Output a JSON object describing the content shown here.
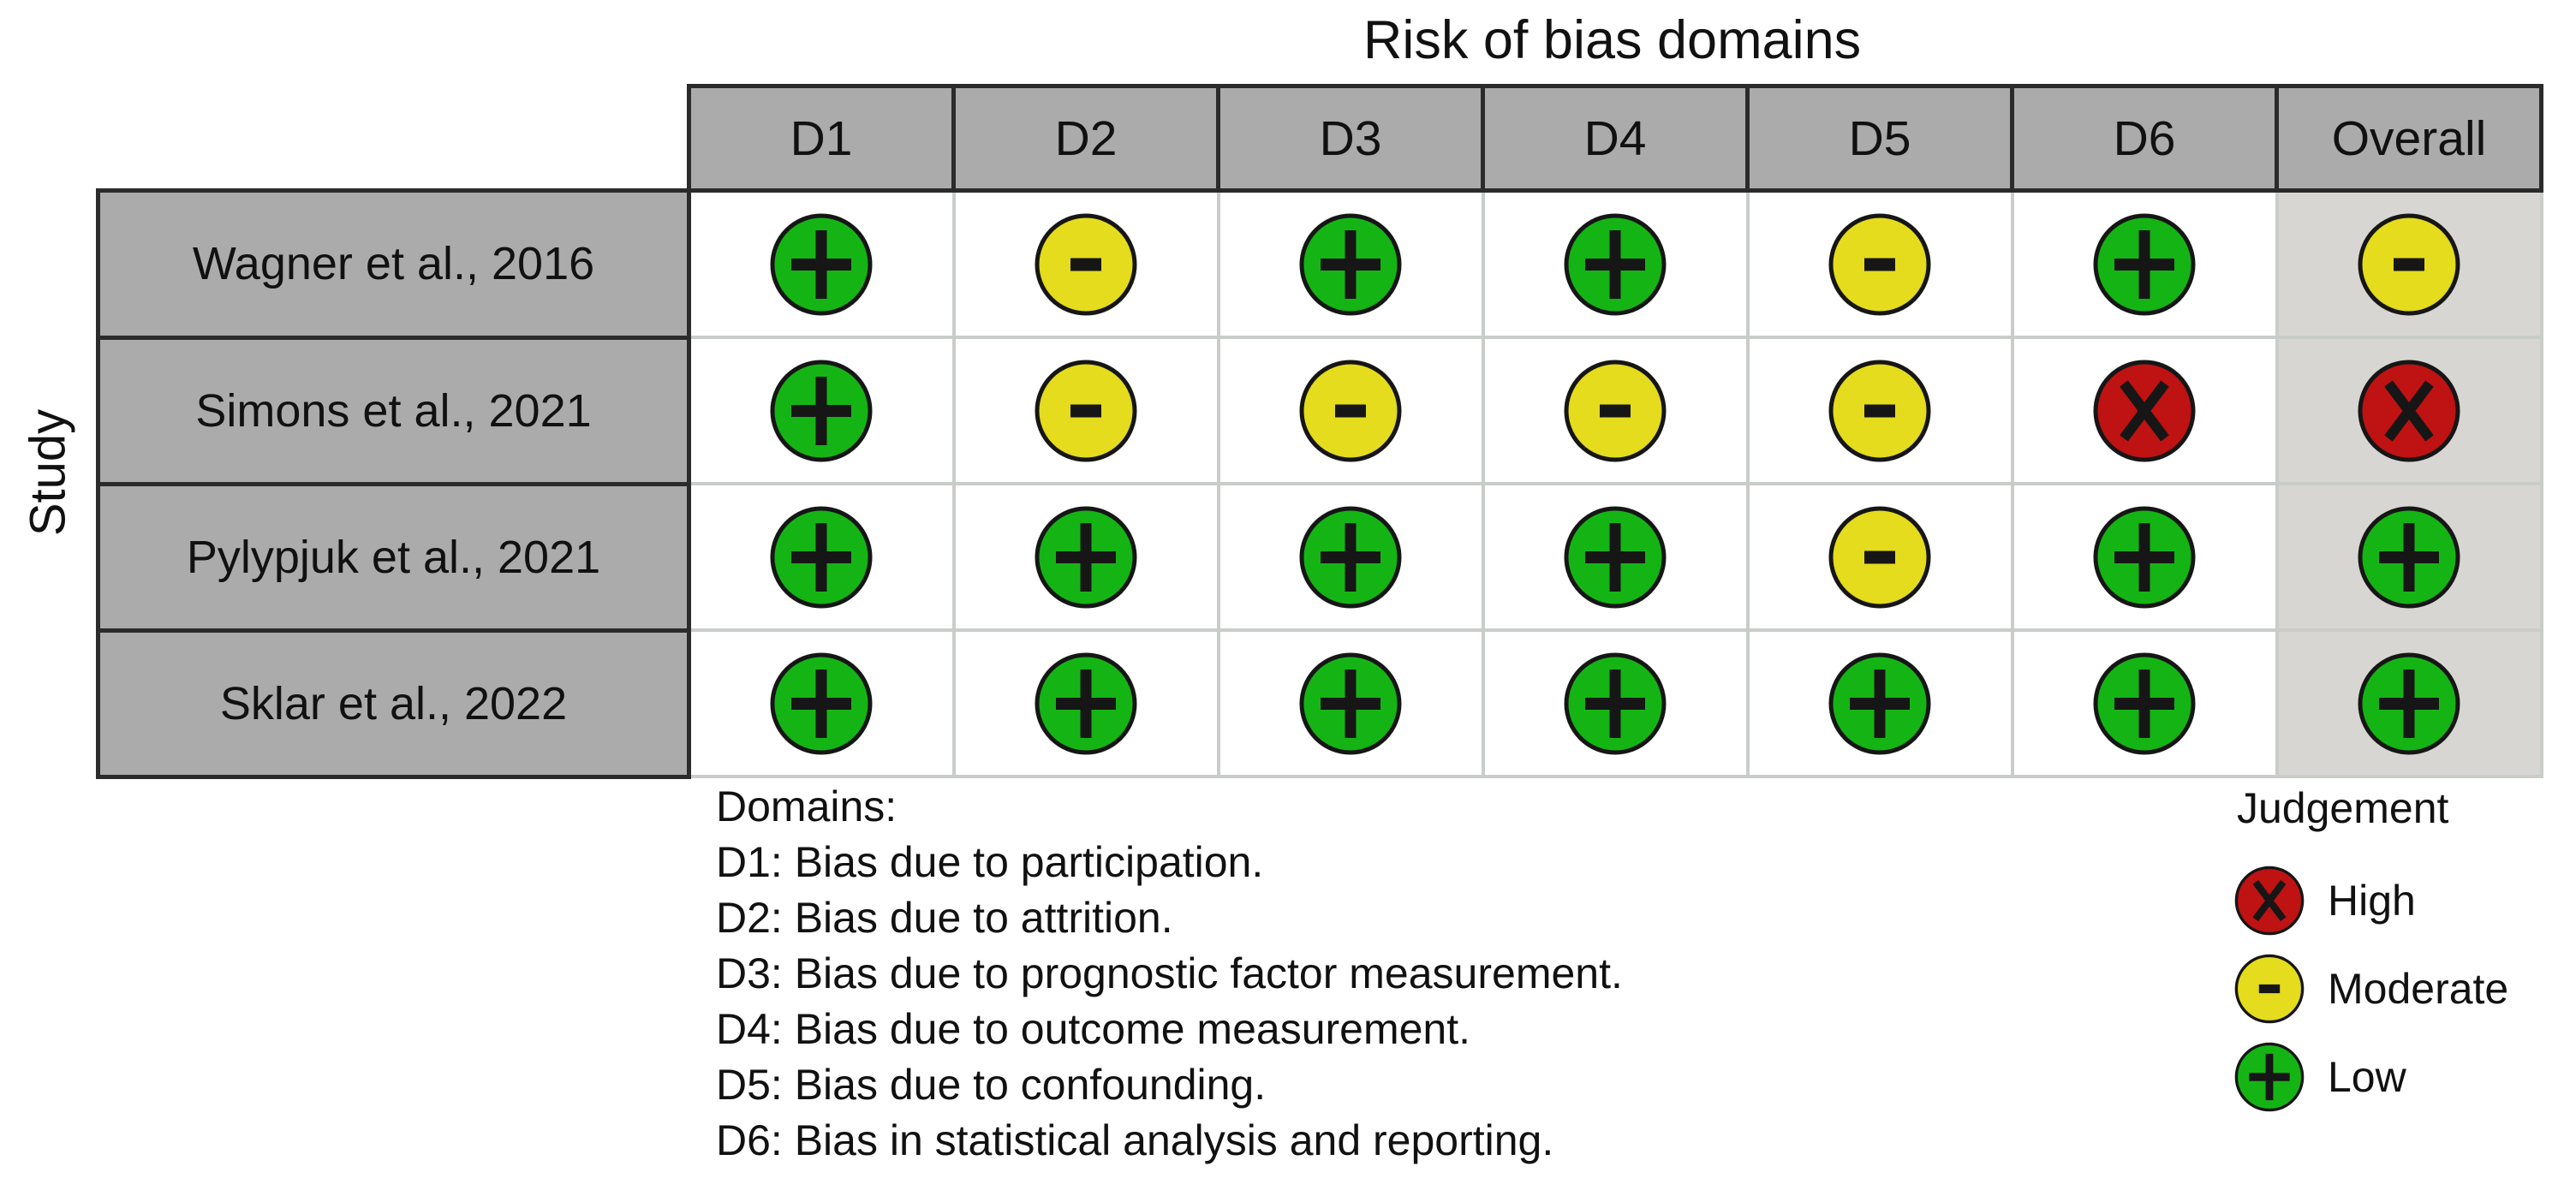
{
  "chart_data": {
    "type": "heatmap",
    "subtype": "risk-of-bias-traffic-light",
    "title": "Risk of bias domains",
    "ylabel": "Study",
    "columns": [
      "D1",
      "D2",
      "D3",
      "D4",
      "D5",
      "D6",
      "Overall"
    ],
    "rows": [
      {
        "study": "Wagner et al., 2016",
        "judgements": [
          "low",
          "moderate",
          "low",
          "low",
          "moderate",
          "low",
          "moderate"
        ]
      },
      {
        "study": "Simons et al., 2021",
        "judgements": [
          "low",
          "moderate",
          "moderate",
          "moderate",
          "moderate",
          "high",
          "high"
        ]
      },
      {
        "study": "Pylypjuk et al., 2021",
        "judgements": [
          "low",
          "low",
          "low",
          "low",
          "moderate",
          "low",
          "low"
        ]
      },
      {
        "study": "Sklar et al., 2022",
        "judgements": [
          "low",
          "low",
          "low",
          "low",
          "low",
          "low",
          "low"
        ]
      }
    ],
    "judgement_styles": {
      "high": {
        "symbol": "x",
        "color": "#bf1212",
        "label": "High"
      },
      "moderate": {
        "symbol": "-",
        "color": "#e4dc1c",
        "label": "Moderate"
      },
      "low": {
        "symbol": "+",
        "color": "#15b415",
        "label": "Low"
      }
    },
    "legend": {
      "title": "Judgement",
      "items": [
        {
          "judgement": "high",
          "label": "High"
        },
        {
          "judgement": "moderate",
          "label": "Moderate"
        },
        {
          "judgement": "low",
          "label": "Low"
        }
      ],
      "position": "bottom-right"
    },
    "footnotes": [
      "Domains:",
      "D1: Bias due to participation.",
      "D2: Bias due to attrition.",
      "D3: Bias due to prognostic factor measurement.",
      "D4: Bias due to outcome measurement.",
      "D5: Bias due to confounding.",
      "D6: Bias in statistical analysis and reporting."
    ],
    "grid": true
  },
  "colors": {
    "header_bg": "#ababab",
    "study_bg": "#ababab",
    "cell_bg": "#ffffff",
    "overall_column_bg": "#d8d6d2",
    "grid_line": "#c9cdc9",
    "header_border": "#2b2b2b",
    "symbol_stroke": "#161616",
    "background": "#ffffff"
  }
}
